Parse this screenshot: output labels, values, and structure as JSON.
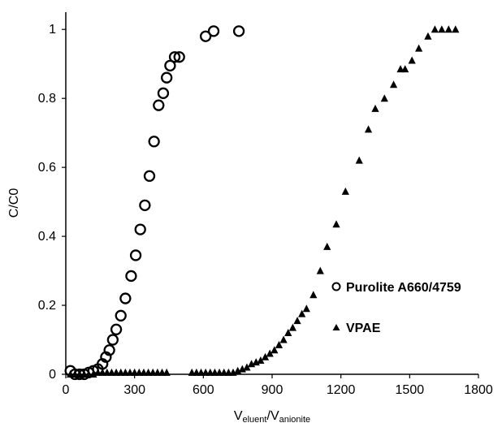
{
  "chart_data": {
    "type": "scatter",
    "ylabel": "C/C0",
    "xlabel": {
      "V": "V",
      "sub1": "eluent",
      "slash": "/",
      "sub2": "anionite"
    },
    "xlim": [
      0,
      1800
    ],
    "ylim": [
      0,
      1.05
    ],
    "xticks": [
      0,
      300,
      600,
      900,
      1200,
      1500,
      1800
    ],
    "yticks": [
      0,
      0.2,
      0.4,
      0.6,
      0.8,
      1
    ],
    "ytick_labels": [
      "0",
      "0.2",
      "0.4",
      "0.6",
      "0.8",
      "1"
    ],
    "grid": false,
    "legend_position": "right",
    "series": [
      {
        "name": "Purolite A660/4759",
        "marker": "open-circle",
        "color": "#000000",
        "x": [
          20,
          40,
          60,
          80,
          100,
          120,
          140,
          160,
          175,
          190,
          205,
          220,
          240,
          260,
          285,
          305,
          325,
          345,
          365,
          385,
          405,
          425,
          440,
          455,
          475,
          495,
          610,
          645,
          755
        ],
        "y": [
          0.01,
          0.0,
          0.0,
          0.0,
          0.005,
          0.01,
          0.015,
          0.03,
          0.05,
          0.07,
          0.1,
          0.13,
          0.17,
          0.22,
          0.285,
          0.345,
          0.42,
          0.49,
          0.575,
          0.675,
          0.78,
          0.815,
          0.86,
          0.895,
          0.92,
          0.92,
          0.98,
          0.995,
          0.995
        ]
      },
      {
        "name": "VPAE",
        "marker": "filled-triangle",
        "color": "#000000",
        "x": [
          20,
          40,
          60,
          80,
          100,
          120,
          140,
          160,
          180,
          200,
          220,
          240,
          260,
          280,
          300,
          320,
          340,
          360,
          380,
          400,
          420,
          440,
          550,
          570,
          590,
          610,
          630,
          650,
          670,
          690,
          710,
          730,
          750,
          770,
          790,
          810,
          830,
          850,
          870,
          890,
          910,
          930,
          950,
          970,
          990,
          1010,
          1030,
          1050,
          1080,
          1110,
          1140,
          1180,
          1220,
          1280,
          1320,
          1350,
          1390,
          1430,
          1460,
          1480,
          1510,
          1540,
          1580,
          1610,
          1640,
          1670,
          1700
        ],
        "y": [
          0.0,
          0.0,
          0.0,
          0.0,
          0.0,
          0.0,
          0.005,
          0.005,
          0.005,
          0.005,
          0.005,
          0.005,
          0.005,
          0.005,
          0.005,
          0.005,
          0.005,
          0.005,
          0.005,
          0.005,
          0.005,
          0.005,
          0.005,
          0.005,
          0.005,
          0.005,
          0.005,
          0.005,
          0.005,
          0.005,
          0.005,
          0.005,
          0.01,
          0.015,
          0.02,
          0.03,
          0.035,
          0.04,
          0.05,
          0.06,
          0.07,
          0.085,
          0.1,
          0.12,
          0.135,
          0.155,
          0.175,
          0.19,
          0.23,
          0.3,
          0.37,
          0.435,
          0.53,
          0.62,
          0.71,
          0.77,
          0.8,
          0.84,
          0.885,
          0.885,
          0.91,
          0.945,
          0.98,
          1.0,
          1.0,
          1.0,
          1.0
        ]
      }
    ]
  }
}
